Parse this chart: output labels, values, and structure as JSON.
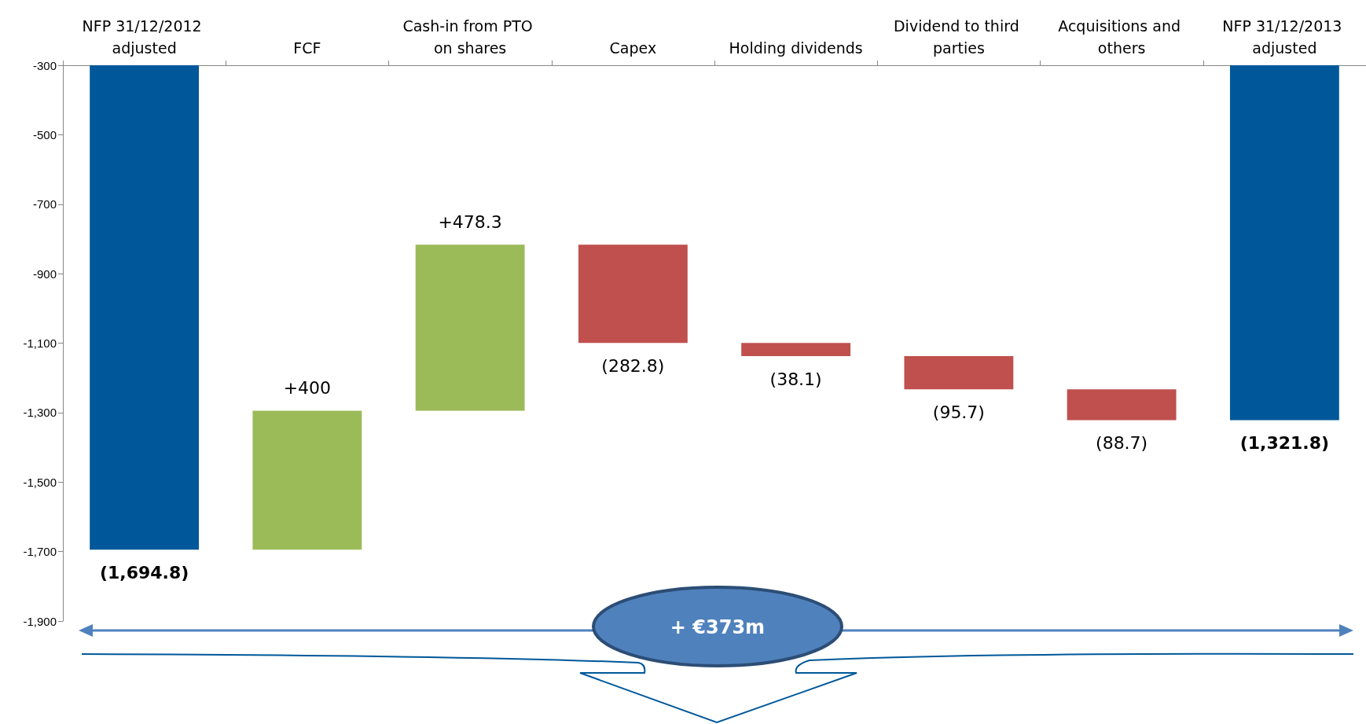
{
  "chart_data": {
    "type": "bar",
    "categories": [
      "NFP 31/12/2012 adjusted",
      "FCF",
      "Cash-in from PTO on shares",
      "Capex",
      "Holding dividends",
      "Dividend to third parties",
      "Acquisitions and others",
      "NFP 31/12/2013 adjusted"
    ],
    "values": [
      -1694.8,
      400,
      478.3,
      -282.8,
      -38.1,
      -95.7,
      -88.7,
      -1321.8
    ],
    "base": [
      null,
      -1694.8,
      -1294.8,
      -816.5,
      -1099.3,
      -1137.4,
      -1233.1,
      null
    ],
    "colors": [
      "#00589a",
      "#9bbb59",
      "#9bbb59",
      "#c0504d",
      "#c0504d",
      "#c0504d",
      "#c0504d",
      "#00589a"
    ],
    "value_labels": [
      "(1,694.8)",
      "+400",
      "+478.3",
      "(282.8)",
      "(38.1)",
      "(95.7)",
      "(88.7)",
      "(1,321.8)"
    ],
    "ylim": [
      -1900,
      -300
    ],
    "yticks": [
      {
        "value": -1900,
        "label": "-1,900"
      },
      {
        "value": -1700,
        "label": "-1,700"
      },
      {
        "value": -1500,
        "label": "-1,500"
      },
      {
        "value": -1300,
        "label": "-1,300"
      },
      {
        "value": -1100,
        "label": "-1,100"
      },
      -900,
      -700,
      -500,
      -300
    ],
    "grid": false,
    "annotations": [
      "+ €373m"
    ]
  }
}
